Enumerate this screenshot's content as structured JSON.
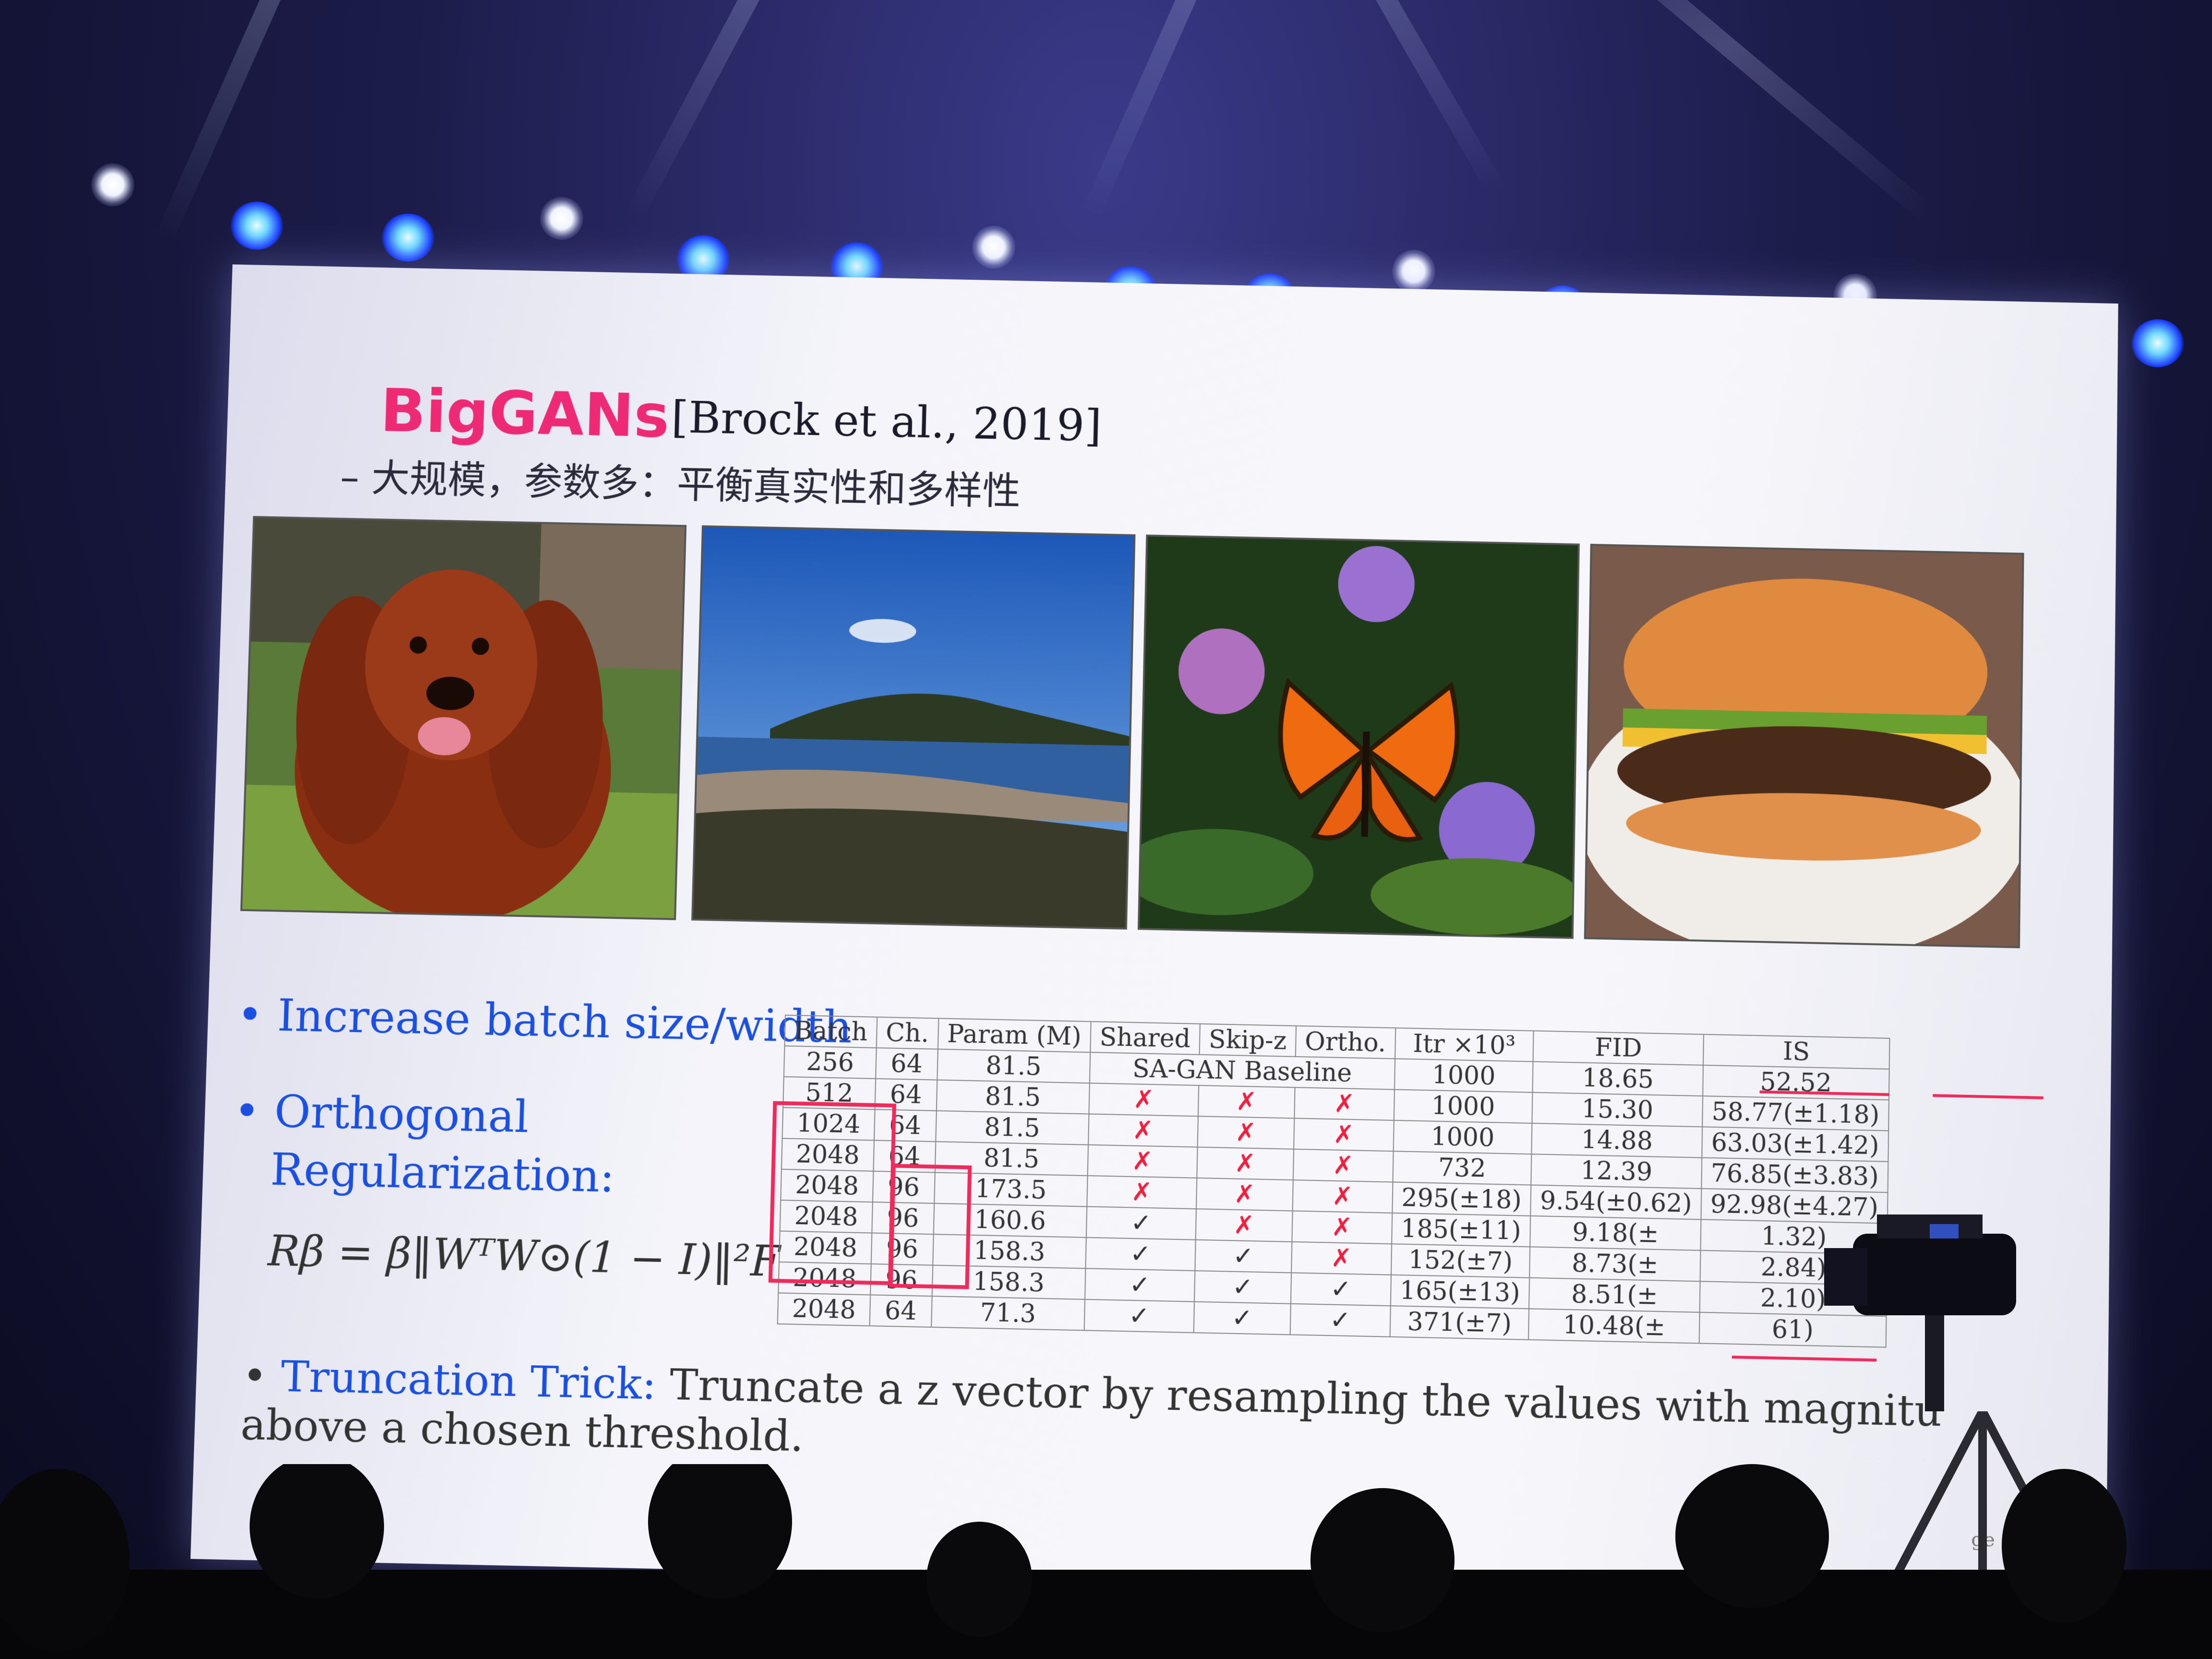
{
  "slide": {
    "title": "BigGANs",
    "citation": "[Brock et al., 2019]",
    "subtitle": "– 大规模，参数多：平衡真实性和多样性",
    "bullets": {
      "batch": "Increase batch size/width",
      "ortho_line1": "Orthogonal",
      "ortho_line2": "Regularization:",
      "formula": "Rβ = β‖WᵀW⊙(1 − I)‖²F",
      "trunc_label": "Truncation Trick:",
      "trunc_text": "Truncate a  z vector by resampling the values with magnitu",
      "trunc_line2": "above a chosen threshold."
    },
    "photos": [
      "dog-photo",
      "coast-photo",
      "butterfly-photo",
      "burger-photo"
    ]
  },
  "table": {
    "headers": [
      "Batch",
      "Ch.",
      "Param (M)",
      "Shared",
      "Skip-z",
      "Ortho.",
      "Itr ×10³",
      "FID",
      "IS"
    ],
    "baseline_label": "SA-GAN Baseline",
    "rows": [
      [
        "256",
        "64",
        "81.5",
        "",
        "",
        "",
        "1000",
        "18.65",
        "52.52"
      ],
      [
        "512",
        "64",
        "81.5",
        "✗",
        "✗",
        "✗",
        "1000",
        "15.30",
        "58.77(±1.18)"
      ],
      [
        "1024",
        "64",
        "81.5",
        "✗",
        "✗",
        "✗",
        "1000",
        "14.88",
        "63.03(±1.42)"
      ],
      [
        "2048",
        "64",
        "81.5",
        "✗",
        "✗",
        "✗",
        "732",
        "12.39",
        "76.85(±3.83)"
      ],
      [
        "2048",
        "96",
        "173.5",
        "✗",
        "✗",
        "✗",
        "295(±18)",
        "9.54(±0.62)",
        "92.98(±4.27)"
      ],
      [
        "2048",
        "96",
        "160.6",
        "✓",
        "✗",
        "✗",
        "185(±11)",
        "9.18(±",
        "1.32)"
      ],
      [
        "2048",
        "96",
        "158.3",
        "✓",
        "✓",
        "✗",
        "152(±7)",
        "8.73(±",
        "2.84)"
      ],
      [
        "2048",
        "96",
        "158.3",
        "✓",
        "✓",
        "✓",
        "165(±13)",
        "8.51(±",
        "2.10)"
      ],
      [
        "2048",
        "64",
        "71.3",
        "✓",
        "✓",
        "✓",
        "371(±7)",
        "10.48(±",
        "61)"
      ]
    ]
  },
  "page_number": "ge 6",
  "colors": {
    "title": "#ee2a74",
    "bullet": "#1a4fe0",
    "highlight": "#f02a5a"
  }
}
